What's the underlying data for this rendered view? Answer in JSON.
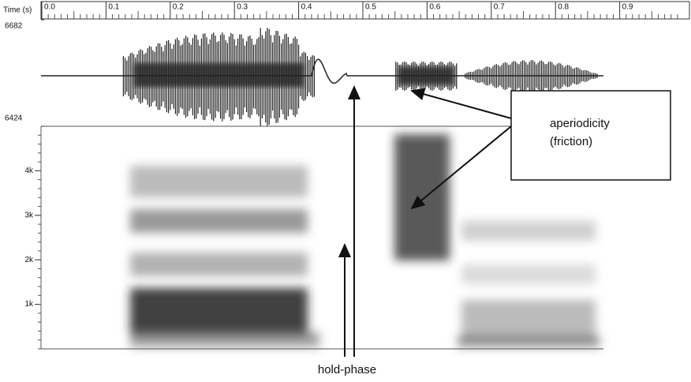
{
  "chart_data": {
    "type": "spectrogram",
    "xlabel": "Time (s)",
    "xlim": [
      0,
      1
    ],
    "xticks": [
      {
        "value": 0,
        "label": "0.0"
      },
      0.1,
      0.2,
      0.3,
      0.4,
      0.5,
      0.6,
      0.7,
      0.8,
      0.9
    ],
    "waveform_ylim": [
      6424,
      6682
    ],
    "waveform_yticks": [
      6424,
      6682
    ],
    "ylim": [
      0,
      5000
    ],
    "yticks": [
      {
        "value": 1000,
        "label": "1k"
      },
      {
        "value": 2000,
        "label": "2k"
      },
      {
        "value": 3000,
        "label": "3k"
      },
      {
        "value": 4000,
        "label": "4k"
      }
    ],
    "annotations": [
      "aperiodicity",
      "(friction)",
      "hold-phase"
    ]
  }
}
